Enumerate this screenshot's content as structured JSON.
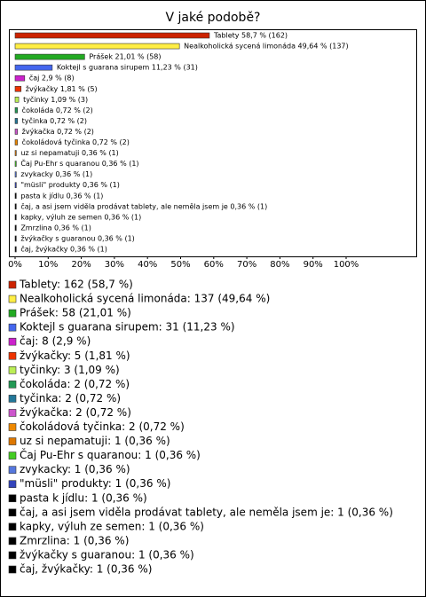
{
  "chart_data": {
    "type": "bar",
    "orientation": "horizontal",
    "title": "V jaké podobě?",
    "categories": [
      "Tablety",
      "Nealkoholická sycená limonáda",
      "Prášek",
      "Koktejl s guarana sirupem",
      "čaj",
      "žvýkačky",
      "tyčinky",
      "čokoláda",
      "tyčinka",
      "žvýkačka",
      "čokoládová tyčinka",
      "uz si nepamatuji",
      "Čaj Pu-Ehr s quaranou",
      "zvykacky",
      "\"müsli\" produkty",
      "pasta k jídlu",
      "čaj, a asi jsem viděla prodávat tablety, ale neměla jsem je",
      "kapky, výluh ze semen",
      "Zmrzlina",
      "žvýkačky s guaranou",
      "čaj, žvýkačky"
    ],
    "values": [
      58.7,
      49.64,
      21.01,
      11.23,
      2.9,
      1.81,
      1.09,
      0.72,
      0.72,
      0.72,
      0.72,
      0.36,
      0.36,
      0.36,
      0.36,
      0.36,
      0.36,
      0.36,
      0.36,
      0.36,
      0.36
    ],
    "value_labels": [
      "Tablety 58,7 % (162)",
      "Nealkoholická sycená limonáda 49,64 % (137)",
      "Prášek 21,01 % (58)",
      "Koktejl s guarana sirupem 11,23 % (31)",
      "čaj 2,9 % (8)",
      "žvýkačky 1,81 % (5)",
      "tyčinky 1,09 % (3)",
      "čokoláda 0,72 % (2)",
      "tyčinka 0,72 % (2)",
      "žvýkačka 0,72 % (2)",
      "čokoládová tyčinka 0,72 % (2)",
      "uz si nepamatuji 0,36 % (1)",
      "Čaj Pu-Ehr s quaranou 0,36 % (1)",
      "zvykacky 0,36 % (1)",
      "\"müsli\" produkty 0,36 % (1)",
      "pasta k jídlu 0,36 % (1)",
      "čaj, a asi jsem viděla prodávat tablety, ale neměla jsem je 0,36 % (1)",
      "kapky, výluh ze semen 0,36 % (1)",
      "Zmrzlina 0,36 % (1)",
      "žvýkačky s guaranou 0,36 % (1)",
      "čaj, žvýkačky 0,36 % (1)"
    ],
    "legend_labels": [
      "Tablety: 162 (58,7 %)",
      "Nealkoholická sycená limonáda: 137 (49,64 %)",
      "Prášek: 58 (21,01 %)",
      "Koktejl s guarana sirupem: 31 (11,23 %)",
      "čaj: 8 (2,9 %)",
      "žvýkačky: 5 (1,81 %)",
      "tyčinky: 3 (1,09 %)",
      "čokoláda: 2 (0,72 %)",
      "tyčinka: 2 (0,72 %)",
      "žvýkačka: 2 (0,72 %)",
      "čokoládová tyčinka: 2 (0,72 %)",
      "uz si nepamatuji: 1 (0,36 %)",
      "Čaj Pu-Ehr s quaranou: 1 (0,36 %)",
      "zvykacky: 1 (0,36 %)",
      "\"müsli\" produkty: 1 (0,36 %)",
      "pasta k jídlu: 1 (0,36 %)",
      "čaj, a asi jsem viděla prodávat tablety, ale neměla jsem je: 1 (0,36 %)",
      "kapky, výluh ze semen: 1 (0,36 %)",
      "Zmrzlina: 1 (0,36 %)",
      "žvýkačky s guaranou: 1 (0,36 %)",
      "čaj, žvýkačky: 1 (0,36 %)"
    ],
    "colors": [
      "#cc2200",
      "#ffee44",
      "#22aa22",
      "#4466ee",
      "#cc22cc",
      "#ee3300",
      "#bbee55",
      "#229955",
      "#227799",
      "#cc55cc",
      "#ee8800",
      "#dd7700",
      "#44cc22",
      "#5577dd",
      "#3344bb",
      "#000000",
      "#000000",
      "#000000",
      "#000000",
      "#000000",
      "#000000"
    ],
    "xlim": [
      0,
      100
    ],
    "xticks": [
      {
        "value": 0,
        "label": "0%"
      },
      {
        "value": 10,
        "label": "10%"
      },
      {
        "value": 20,
        "label": "20%"
      },
      {
        "value": 30,
        "label": "30%"
      },
      {
        "value": 40,
        "label": "40%"
      },
      {
        "value": 50,
        "label": "50%"
      },
      {
        "value": 60,
        "label": "60%"
      },
      {
        "value": 70,
        "label": "70%"
      },
      {
        "value": 80,
        "label": "80%"
      },
      {
        "value": 90,
        "label": "90%"
      },
      {
        "value": 100,
        "label": "100%"
      }
    ]
  }
}
